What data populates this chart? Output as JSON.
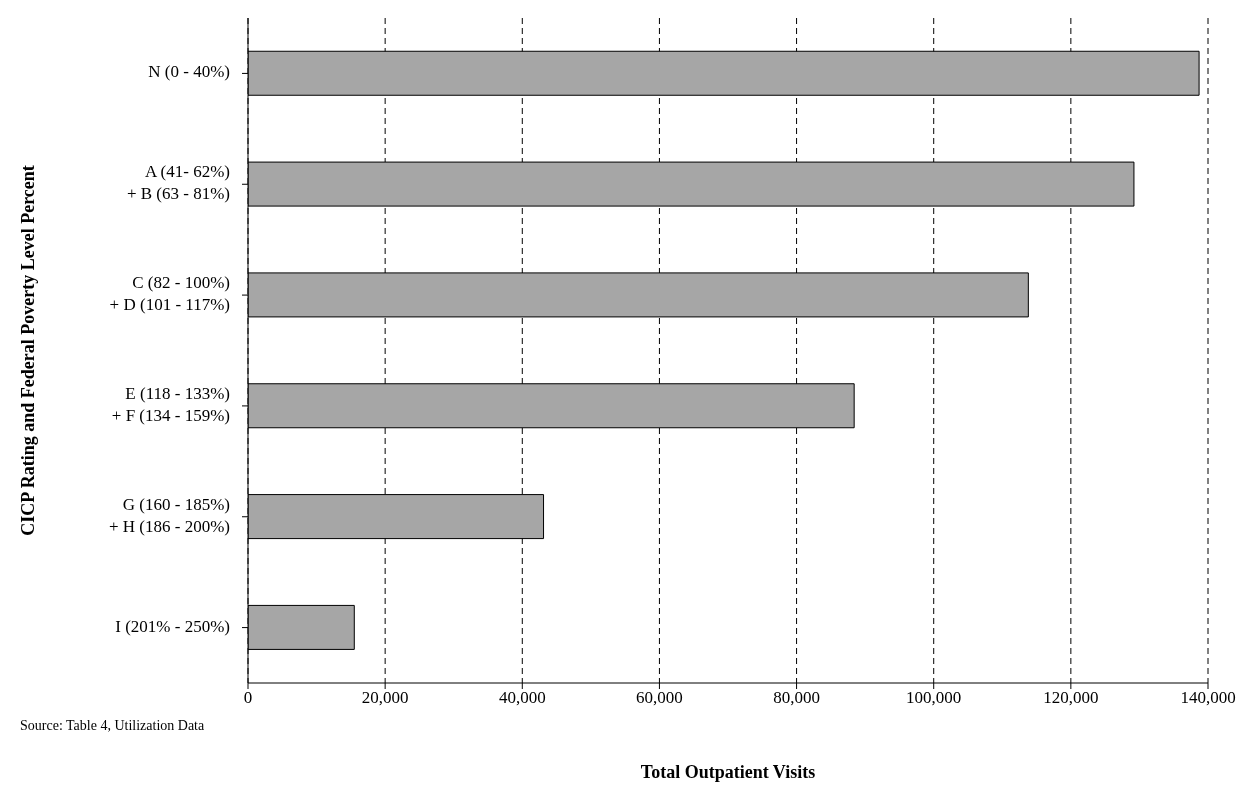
{
  "chart_data": {
    "type": "bar",
    "orientation": "horizontal",
    "ylabel": "CICP Rating and Federal Poverty Level Percent",
    "xlabel": "Total Outpatient Visits",
    "categories": [
      "N (0 - 40%)",
      "A (41- 62%)\n+ B (63 - 81%)",
      "C (82 - 100%)\n+ D (101 - 117%)",
      "E (118 - 133%)\n+ F (134 - 159%)",
      "G (160 - 185%)\n+ H (186 - 200%)",
      "I (201% - 250%)"
    ],
    "values": [
      138700,
      129200,
      113800,
      88400,
      43100,
      15500
    ],
    "color": "#a6a6a6",
    "xlim": [
      0,
      140000
    ],
    "xticks": [
      {
        "value": 0,
        "label": "0"
      },
      {
        "value": 20000,
        "label": "20,000"
      },
      {
        "value": 40000,
        "label": "40,000"
      },
      {
        "value": 60000,
        "label": "60,000"
      },
      {
        "value": 80000,
        "label": "80,000"
      },
      {
        "value": 100000,
        "label": "100,000"
      },
      {
        "value": 120000,
        "label": "120,000"
      },
      {
        "value": 140000,
        "label": "140,000"
      }
    ],
    "grid": "x",
    "annotations": [
      "Source:  Table 4, Utilization Data"
    ]
  }
}
